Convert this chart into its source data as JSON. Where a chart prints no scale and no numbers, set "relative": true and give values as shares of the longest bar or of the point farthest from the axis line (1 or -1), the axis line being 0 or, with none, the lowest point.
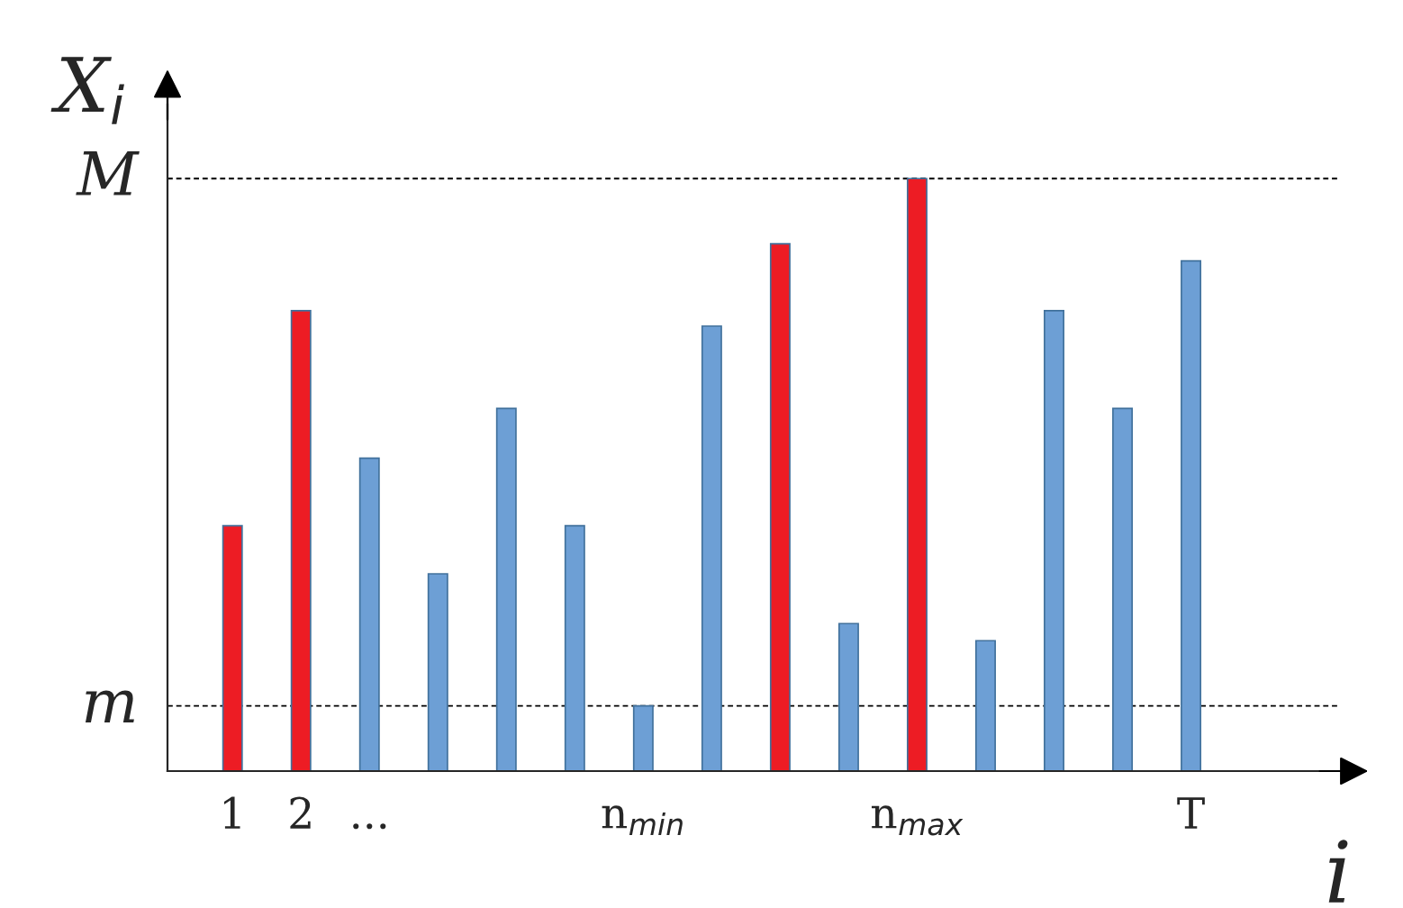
{
  "chart_data": {
    "type": "bar",
    "relative": true,
    "xlabel": "i",
    "ylabel": "X$_{i}$",
    "categories": [
      "1",
      "2",
      "...",
      null,
      null,
      null,
      "n$_{min}$",
      null,
      null,
      null,
      "n$_{max}$",
      null,
      null,
      null,
      "T"
    ],
    "values": [
      0.414,
      0.777,
      0.528,
      0.333,
      0.612,
      0.414,
      0.11,
      0.751,
      0.89,
      0.249,
      1,
      0.22,
      0.777,
      0.612,
      0.861
    ],
    "colors": [
      "#ed1c24",
      "#ed1c24",
      "#6d9fd5",
      "#6d9fd5",
      "#6d9fd5",
      "#6d9fd5",
      "#6d9fd5",
      "#6d9fd5",
      "#ed1c24",
      "#6d9fd5",
      "#ed1c24",
      "#6d9fd5",
      "#6d9fd5",
      "#6d9fd5",
      "#6d9fd5"
    ],
    "ref_lines": [
      {
        "axis": "y",
        "value": 0.11,
        "label": "m",
        "line_style": "dashed",
        "color": "#000000"
      },
      {
        "axis": "y",
        "value": 1,
        "label": "M",
        "line_style": "dashed",
        "color": "#000000"
      }
    ],
    "grid": false
  }
}
